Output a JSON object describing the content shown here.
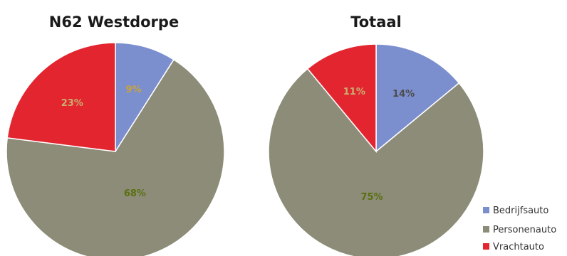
{
  "legend": {
    "items": [
      {
        "label": "Bedrijfsauto",
        "color": "#7b8fcf"
      },
      {
        "label": "Personenauto",
        "color": "#8c8c78"
      },
      {
        "label": "Vrachtauto",
        "color": "#e3252f"
      }
    ]
  },
  "chart_data": [
    {
      "type": "pie",
      "title": "N62 Westdorpe",
      "labels": [
        "Bedrijfsauto",
        "Personenauto",
        "Vrachtauto"
      ],
      "values": [
        9,
        68,
        23
      ],
      "value_labels": [
        "9%",
        "68%",
        "23%"
      ],
      "colors": [
        "#7b8fcf",
        "#8c8c78",
        "#e3252f"
      ],
      "label_colors": [
        "#c9a33a",
        "#5a6f10",
        "#c7b070"
      ]
    },
    {
      "type": "pie",
      "title": "Totaal",
      "labels": [
        "Bedrijfsauto",
        "Personenauto",
        "Vrachtauto"
      ],
      "values": [
        14,
        75,
        11
      ],
      "value_labels": [
        "14%",
        "75%",
        "11%"
      ],
      "colors": [
        "#7b8fcf",
        "#8c8c78",
        "#e3252f"
      ],
      "label_colors": [
        "#4d4d4d",
        "#5a6f10",
        "#c7b070"
      ]
    }
  ]
}
